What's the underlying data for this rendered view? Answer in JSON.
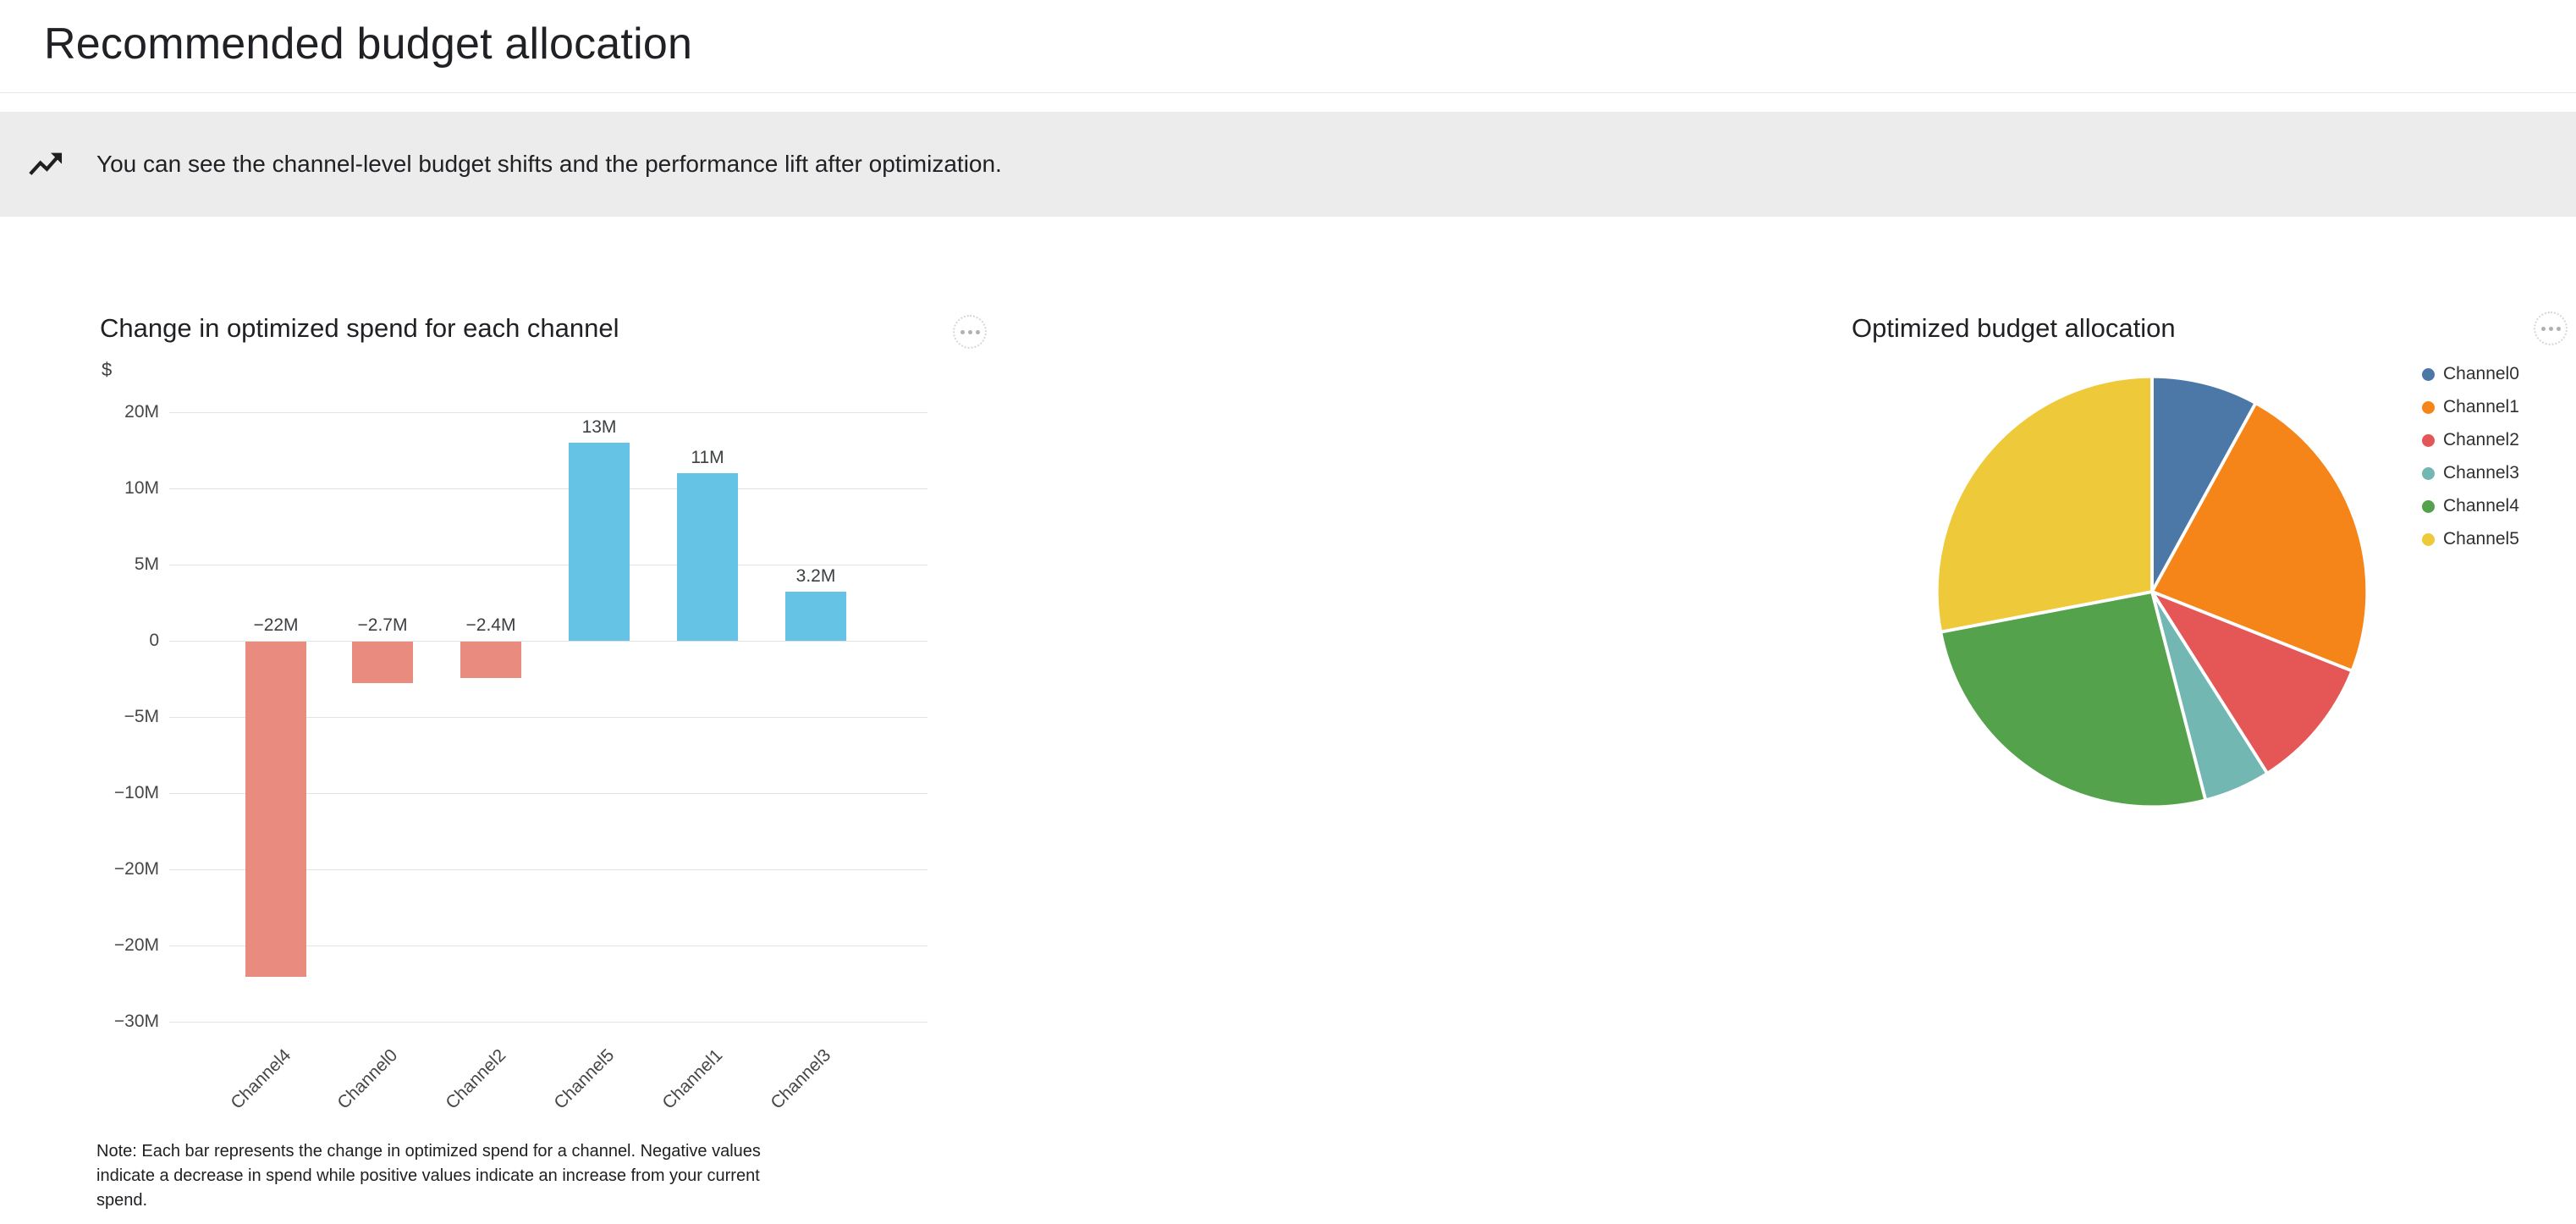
{
  "page": {
    "title": "Recommended budget allocation"
  },
  "banner": {
    "icon": "insights-icon",
    "text": "You can see the channel-level budget shifts and the performance lift after optimization."
  },
  "chart_data": [
    {
      "type": "bar",
      "title": "Change in optimized spend for each channel",
      "ylabel": "$",
      "categories": [
        "Channel4",
        "Channel0",
        "Channel2",
        "Channel5",
        "Channel1",
        "Channel3"
      ],
      "values": [
        -22,
        -2.7,
        -2.4,
        13,
        11,
        3.2
      ],
      "value_labels": [
        "−22M",
        "−2.7M",
        "−2.4M",
        "13M",
        "11M",
        "3.2M"
      ],
      "y_ticks": [
        "20M",
        "10M",
        "5M",
        "0",
        "−5M",
        "−10M",
        "−20M",
        "−20M",
        "−30M"
      ],
      "ylim": [
        -30,
        20
      ],
      "grid": true,
      "colors": {
        "positive": "#65c3e5",
        "negative": "#e98b7f"
      },
      "note": "Note: Each bar represents the change in optimized spend for a channel. Negative values indicate a decrease in spend while positive values indicate an increase from your current spend."
    },
    {
      "type": "pie",
      "title": "Optimized budget allocation",
      "legend_position": "top-right",
      "categories": [
        "Channel0",
        "Channel1",
        "Channel2",
        "Channel3",
        "Channel4",
        "Channel5"
      ],
      "values": [
        8,
        23,
        10,
        5,
        26,
        28
      ],
      "colors": [
        "#4c78a8",
        "#f58518",
        "#e45756",
        "#72b7b2",
        "#54a24b",
        "#eeca3b"
      ]
    }
  ]
}
